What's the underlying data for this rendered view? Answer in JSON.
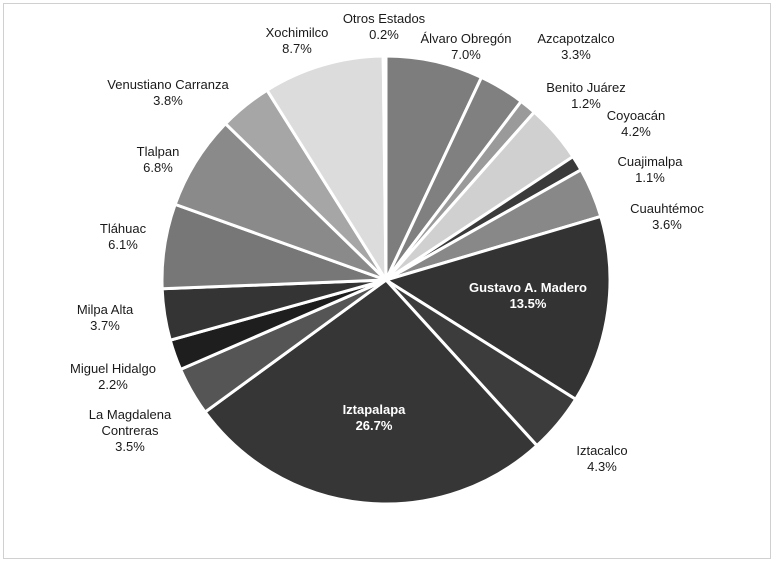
{
  "chart_data": {
    "type": "pie",
    "title": "",
    "slices": [
      {
        "label": "Álvaro Obregón",
        "value": 7.0,
        "display": "7.0%",
        "color": "#7d7d7d"
      },
      {
        "label": "Azcapotzalco",
        "value": 3.3,
        "display": "3.3%",
        "color": "#808080"
      },
      {
        "label": "Benito Juárez",
        "value": 1.2,
        "display": "1.2%",
        "color": "#9a9a9a"
      },
      {
        "label": "Coyoacán",
        "value": 4.2,
        "display": "4.2%",
        "color": "#d0d0d0"
      },
      {
        "label": "Cuajimalpa",
        "value": 1.1,
        "display": "1.1%",
        "color": "#3a3a3a"
      },
      {
        "label": "Cuauhtémoc",
        "value": 3.6,
        "display": "3.6%",
        "color": "#888888"
      },
      {
        "label": "Gustavo A. Madero",
        "value": 13.5,
        "display": "13.5%",
        "color": "#333333"
      },
      {
        "label": "Iztacalco",
        "value": 4.3,
        "display": "4.3%",
        "color": "#3c3c3c"
      },
      {
        "label": "Iztapalapa",
        "value": 26.7,
        "display": "26.7%",
        "color": "#363636"
      },
      {
        "label": "La Magdalena Contreras",
        "value": 3.5,
        "display": "3.5%",
        "color": "#555555"
      },
      {
        "label": "Miguel Hidalgo",
        "value": 2.2,
        "display": "2.2%",
        "color": "#1e1e1e"
      },
      {
        "label": "Milpa Alta",
        "value": 3.7,
        "display": "3.7%",
        "color": "#343434"
      },
      {
        "label": "Tláhuac",
        "value": 6.1,
        "display": "6.1%",
        "color": "#777777"
      },
      {
        "label": "Tlalpan",
        "value": 6.8,
        "display": "6.8%",
        "color": "#8a8a8a"
      },
      {
        "label": "Venustiano Carranza",
        "value": 3.8,
        "display": "3.8%",
        "color": "#a6a6a6"
      },
      {
        "label": "Xochimilco",
        "value": 8.7,
        "display": "8.7%",
        "color": "#dcdcdc"
      },
      {
        "label": "Otros Estados",
        "value": 0.2,
        "display": "0.2%",
        "color": "#e6e6e6"
      }
    ]
  }
}
